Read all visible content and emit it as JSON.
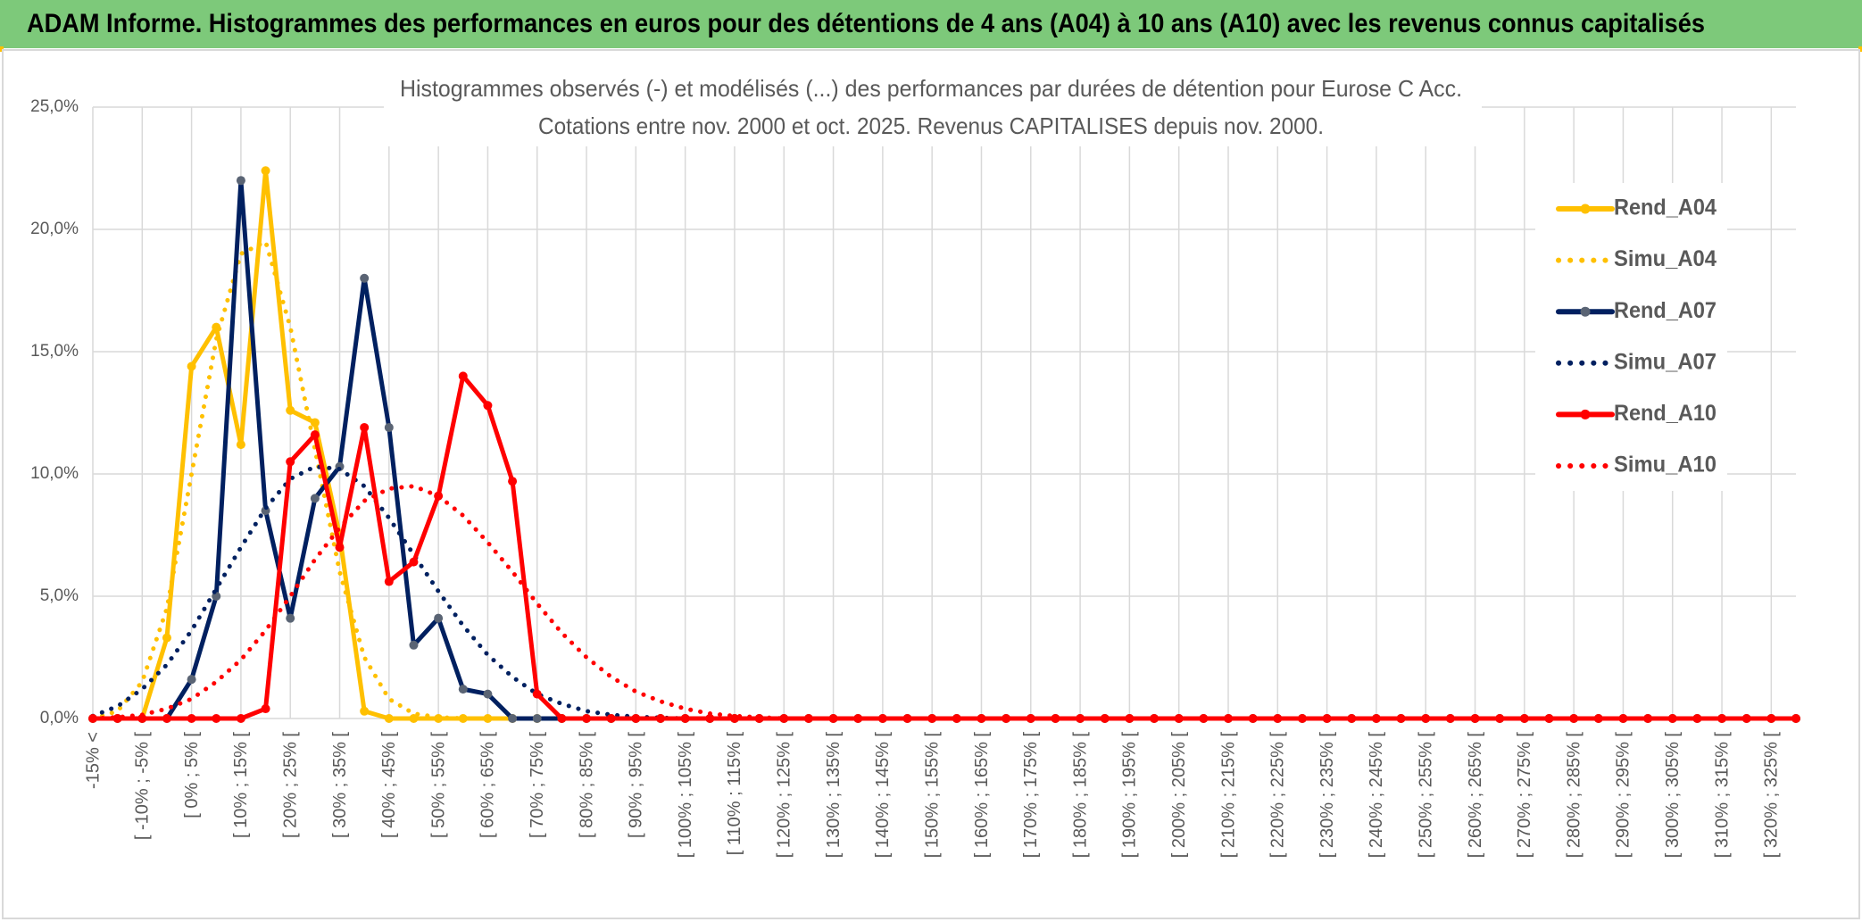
{
  "header": {
    "title": "ADAM Informe. Histogrammes des performances en euros pour des détentions de 4 ans (A04) à 10 ans (A10) avec les revenus connus capitalisés"
  },
  "chart_data": {
    "type": "line",
    "title": "Histogrammes observés (-) et modélisés (...) des performances par durées de détention pour Eurose C Acc.",
    "subtitle": "Cotations entre nov. 2000 et oct. 2025. Revenus CAPITALISES depuis nov. 2000.",
    "categories": [
      "-15% <",
      null,
      "[ -10% ; -5% [",
      null,
      "[ 0% ; 5% [",
      null,
      "[ 10% ; 15% [",
      null,
      "[ 20% ; 25% [",
      null,
      "[ 30% ; 35% [",
      null,
      "[ 40% ; 45% [",
      null,
      "[ 50% ; 55% [",
      null,
      "[ 60% ; 65% [",
      null,
      "[ 70% ; 75% [",
      null,
      "[ 80% ; 85% [",
      null,
      "[ 90% ; 95% [",
      null,
      "[ 100% ; 105% [",
      null,
      "[ 110% ; 115% [",
      null,
      "[ 120% ; 125% [",
      null,
      "[ 130% ; 135% [",
      null,
      "[ 140% ; 145% [",
      null,
      "[ 150% ; 155% [",
      null,
      "[ 160% ; 165% [",
      null,
      "[ 170% ; 175% [",
      null,
      "[ 180% ; 185% [",
      null,
      "[ 190% ; 195% [",
      null,
      "[ 200% ; 205% [",
      null,
      "[ 210% ; 215% [",
      null,
      "[ 220% ; 225% [",
      null,
      "[ 230% ; 235% [",
      null,
      "[ 240% ; 245% [",
      null,
      "[ 250% ; 255% [",
      null,
      "[ 260% ; 265% [",
      null,
      "[ 270% ; 275% [",
      null,
      "[ 280% ; 285% [",
      null,
      "[ 290% ; 295% [",
      null,
      "[ 300% ; 305% [",
      null,
      "[ 310% ; 315% [",
      null,
      "[ 320% ; 325% [",
      null
    ],
    "series": [
      {
        "name": "Rend_A04",
        "color": "#FFC000",
        "style": "solid",
        "markers": true,
        "marker_color": "#FFC000",
        "values": [
          0,
          0,
          0,
          3.3,
          14.4,
          16.0,
          11.2,
          22.4,
          12.6,
          12.1,
          7.5,
          0.3,
          0,
          0,
          0,
          0,
          0,
          0,
          0,
          0,
          0,
          0,
          0,
          0,
          0,
          0,
          0,
          0,
          0,
          0,
          0,
          0,
          0,
          0,
          0,
          0,
          0,
          0,
          0,
          0,
          0,
          0,
          0,
          0,
          0,
          0,
          0,
          0,
          0,
          0,
          0,
          0,
          0,
          0,
          0,
          0,
          0,
          0,
          0,
          0,
          0,
          0,
          0,
          0,
          0,
          0,
          0,
          0,
          0,
          0
        ]
      },
      {
        "name": "Simu_A04",
        "color": "#FFC000",
        "style": "dotted",
        "markers": false,
        "values": [
          0,
          0.3,
          1.5,
          4.5,
          10,
          15.5,
          19,
          19.5,
          16,
          11,
          6,
          2.5,
          0.8,
          0.2,
          0.05,
          0,
          0,
          0,
          0,
          0,
          0,
          0,
          0,
          0,
          0,
          0,
          0,
          0,
          0,
          0,
          0,
          0,
          0,
          0,
          0,
          0,
          0,
          0,
          0,
          0,
          0,
          0,
          0,
          0,
          0,
          0,
          0,
          0,
          0,
          0,
          0,
          0,
          0,
          0,
          0,
          0,
          0,
          0,
          0,
          0,
          0,
          0,
          0,
          0,
          0,
          0,
          0,
          0,
          0,
          0
        ]
      },
      {
        "name": "Rend_A07",
        "color": "#002060",
        "style": "solid",
        "markers": true,
        "marker_color": "#5A6474",
        "values": [
          0,
          0,
          0,
          0,
          1.6,
          5.0,
          22.0,
          8.5,
          4.1,
          9.0,
          10.3,
          18.0,
          11.9,
          3.0,
          4.1,
          1.2,
          1.0,
          0,
          0,
          0,
          0,
          0,
          0,
          0,
          0,
          0,
          0,
          0,
          0,
          0,
          0,
          0,
          0,
          0,
          0,
          0,
          0,
          0,
          0,
          0,
          0,
          0,
          0,
          0,
          0,
          0,
          0,
          0,
          0,
          0,
          0,
          0,
          0,
          0,
          0,
          0,
          0,
          0,
          0,
          0,
          0,
          0,
          0,
          0,
          0,
          0,
          0,
          0,
          0,
          0
        ]
      },
      {
        "name": "Simu_A07",
        "color": "#002060",
        "style": "dotted",
        "markers": false,
        "values": [
          0.1,
          0.5,
          1.2,
          2.2,
          3.6,
          5.3,
          7.0,
          8.6,
          9.8,
          10.3,
          10.2,
          9.5,
          8.2,
          6.7,
          5.2,
          3.8,
          2.6,
          1.7,
          1.0,
          0.6,
          0.3,
          0.15,
          0.07,
          0.03,
          0,
          0,
          0,
          0,
          0,
          0,
          0,
          0,
          0,
          0,
          0,
          0,
          0,
          0,
          0,
          0,
          0,
          0,
          0,
          0,
          0,
          0,
          0,
          0,
          0,
          0,
          0,
          0,
          0,
          0,
          0,
          0,
          0,
          0,
          0,
          0,
          0,
          0,
          0,
          0,
          0,
          0,
          0,
          0,
          0,
          0
        ]
      },
      {
        "name": "Rend_A10",
        "color": "#FF0000",
        "style": "solid",
        "markers": true,
        "marker_color": "#FF0000",
        "values": [
          0,
          0,
          0,
          0,
          0,
          0,
          0,
          0.4,
          10.5,
          11.6,
          7.0,
          11.9,
          5.6,
          6.4,
          9.1,
          14.0,
          12.8,
          9.7,
          1.0,
          0,
          0,
          0,
          0,
          0,
          0,
          0,
          0,
          0,
          0,
          0,
          0,
          0,
          0,
          0,
          0,
          0,
          0,
          0,
          0,
          0,
          0,
          0,
          0,
          0,
          0,
          0,
          0,
          0,
          0,
          0,
          0,
          0,
          0,
          0,
          0,
          0,
          0,
          0,
          0,
          0,
          0,
          0,
          0,
          0,
          0,
          0,
          0,
          0,
          0,
          0
        ]
      },
      {
        "name": "Simu_A10",
        "color": "#FF0000",
        "style": "dotted",
        "markers": false,
        "values": [
          0,
          0.05,
          0.15,
          0.4,
          0.8,
          1.5,
          2.4,
          3.6,
          5.0,
          6.5,
          7.8,
          8.9,
          9.4,
          9.5,
          9.1,
          8.3,
          7.2,
          6.0,
          4.7,
          3.5,
          2.5,
          1.7,
          1.1,
          0.7,
          0.4,
          0.2,
          0.1,
          0.05,
          0,
          0,
          0,
          0,
          0,
          0,
          0,
          0,
          0,
          0,
          0,
          0,
          0,
          0,
          0,
          0,
          0,
          0,
          0,
          0,
          0,
          0,
          0,
          0,
          0,
          0,
          0,
          0,
          0,
          0,
          0,
          0,
          0,
          0,
          0,
          0,
          0,
          0,
          0,
          0,
          0,
          0
        ]
      }
    ],
    "ylim": [
      0,
      25
    ],
    "yticks": [
      {
        "value": 0,
        "label": "0,0%"
      },
      {
        "value": 5,
        "label": "5,0%"
      },
      {
        "value": 10,
        "label": "10,0%"
      },
      {
        "value": 15,
        "label": "15,0%"
      },
      {
        "value": 20,
        "label": "20,0%"
      },
      {
        "value": 25,
        "label": "25,0%"
      }
    ],
    "grid": true,
    "legend": "right"
  }
}
